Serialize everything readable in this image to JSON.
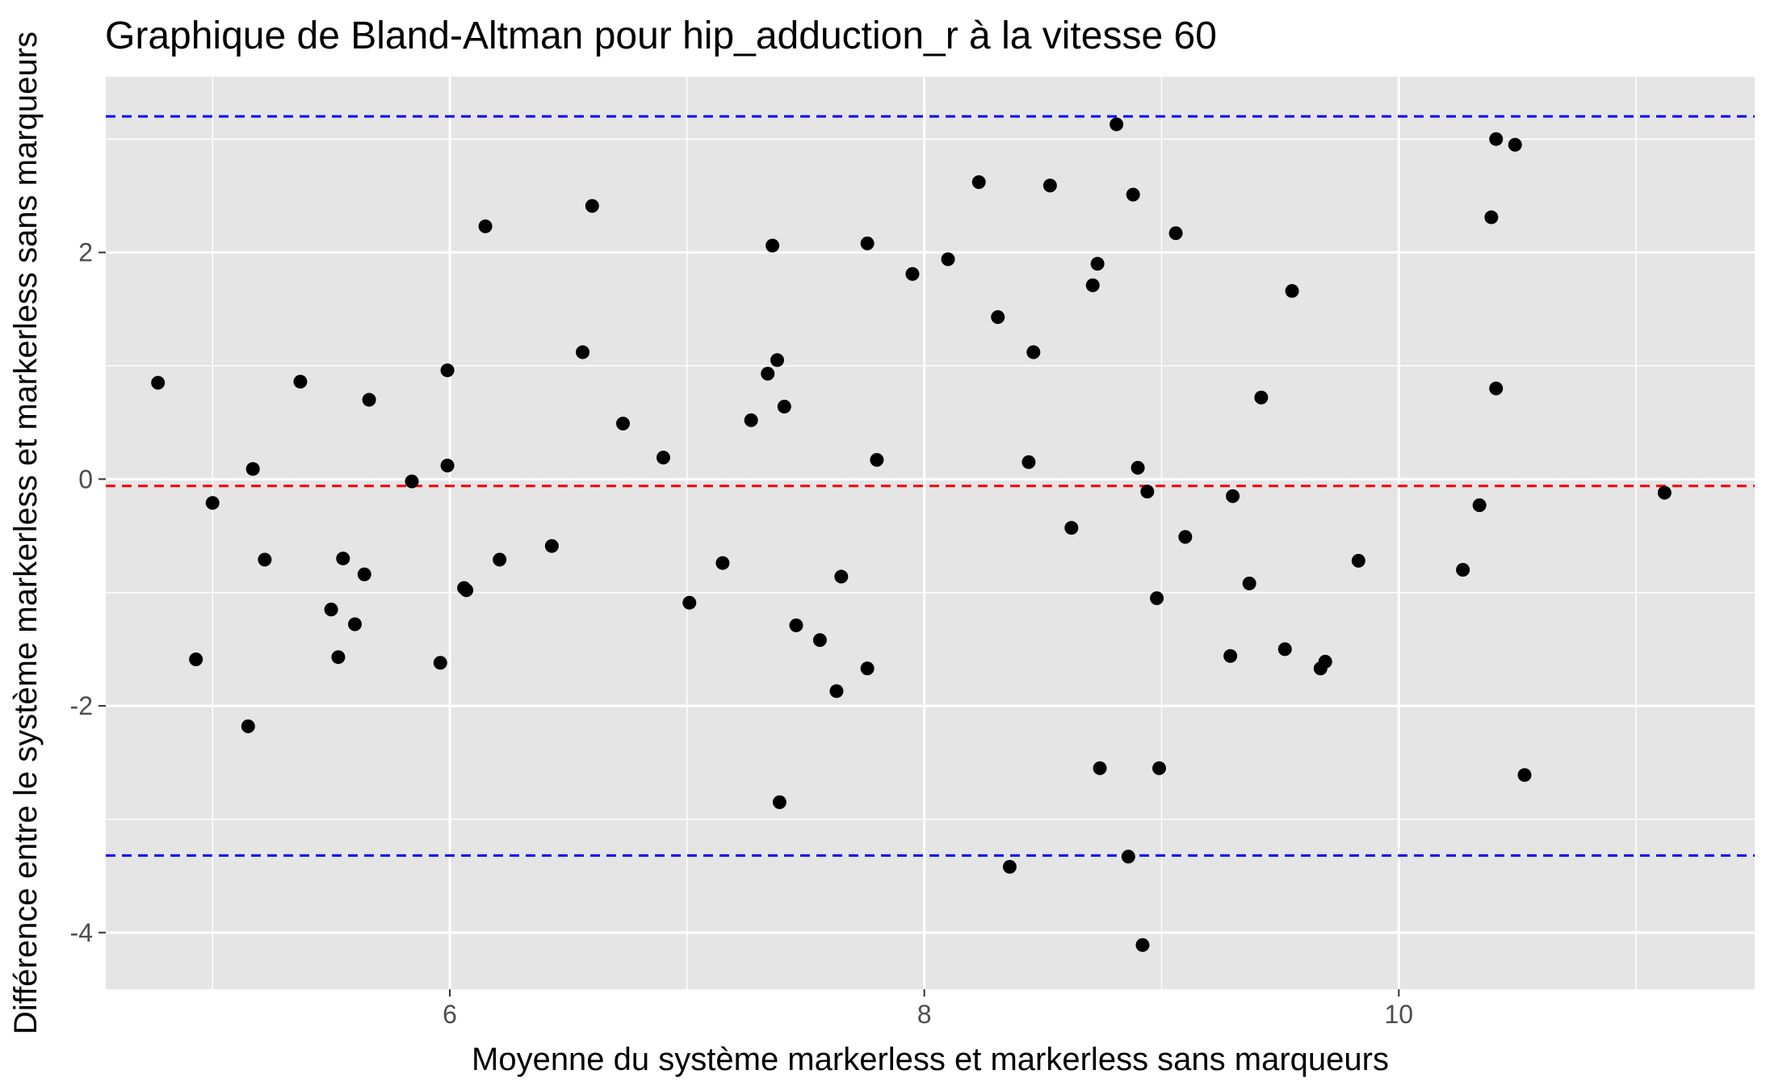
{
  "chart_data": {
    "type": "scatter",
    "title": "Graphique de Bland-Altman pour hip_adduction_r à la vitesse 60",
    "xlabel": "Moyenne du système markerless et markerless sans marqueurs",
    "ylabel": "Différence entre le système markerless et markerless sans marqueurs",
    "xlim": [
      4.55,
      11.5
    ],
    "ylim": [
      -4.5,
      3.55
    ],
    "x_ticks": [
      6,
      8,
      10
    ],
    "y_ticks": [
      -4,
      -2,
      0,
      2
    ],
    "x_tick_labels": [
      "6",
      "8",
      "10"
    ],
    "y_tick_labels": [
      "-4",
      "-2",
      "0",
      "2"
    ],
    "grid": true,
    "background": "#e5e5e5",
    "reference_lines": [
      {
        "role": "mean",
        "y": -0.06,
        "color": "#ff0000",
        "style": "dashed"
      },
      {
        "role": "upper_limit",
        "y": 3.2,
        "color": "#0000ff",
        "style": "dashed"
      },
      {
        "role": "lower_limit",
        "y": -3.32,
        "color": "#0000ff",
        "style": "dashed"
      }
    ],
    "point_color": "#000000",
    "points": [
      {
        "x": 4.77,
        "y": 0.85
      },
      {
        "x": 4.93,
        "y": -1.59
      },
      {
        "x": 5.0,
        "y": -0.21
      },
      {
        "x": 5.15,
        "y": -2.18
      },
      {
        "x": 5.17,
        "y": 0.09
      },
      {
        "x": 5.22,
        "y": -0.71
      },
      {
        "x": 5.37,
        "y": 0.86
      },
      {
        "x": 5.5,
        "y": -1.15
      },
      {
        "x": 5.53,
        "y": -1.57
      },
      {
        "x": 5.55,
        "y": -0.7
      },
      {
        "x": 5.6,
        "y": -1.28
      },
      {
        "x": 5.64,
        "y": -0.84
      },
      {
        "x": 5.66,
        "y": 0.7
      },
      {
        "x": 5.84,
        "y": -0.02
      },
      {
        "x": 5.96,
        "y": -1.62
      },
      {
        "x": 5.99,
        "y": 0.96
      },
      {
        "x": 5.99,
        "y": 0.12
      },
      {
        "x": 6.06,
        "y": -0.96
      },
      {
        "x": 6.07,
        "y": -0.98
      },
      {
        "x": 6.15,
        "y": 2.23
      },
      {
        "x": 6.21,
        "y": -0.71
      },
      {
        "x": 6.43,
        "y": -0.59
      },
      {
        "x": 6.56,
        "y": 1.12
      },
      {
        "x": 6.6,
        "y": 2.41
      },
      {
        "x": 6.73,
        "y": 0.49
      },
      {
        "x": 6.9,
        "y": 0.19
      },
      {
        "x": 7.01,
        "y": -1.09
      },
      {
        "x": 7.15,
        "y": -0.74
      },
      {
        "x": 7.27,
        "y": 0.52
      },
      {
        "x": 7.34,
        "y": 0.93
      },
      {
        "x": 7.36,
        "y": 2.06
      },
      {
        "x": 7.38,
        "y": 1.05
      },
      {
        "x": 7.39,
        "y": -2.85
      },
      {
        "x": 7.41,
        "y": 0.64
      },
      {
        "x": 7.46,
        "y": -1.29
      },
      {
        "x": 7.56,
        "y": -1.42
      },
      {
        "x": 7.63,
        "y": -1.87
      },
      {
        "x": 7.65,
        "y": -0.86
      },
      {
        "x": 7.76,
        "y": 2.08
      },
      {
        "x": 7.76,
        "y": -1.67
      },
      {
        "x": 7.8,
        "y": 0.17
      },
      {
        "x": 7.95,
        "y": 1.81
      },
      {
        "x": 8.1,
        "y": 1.94
      },
      {
        "x": 8.23,
        "y": 2.62
      },
      {
        "x": 8.31,
        "y": 1.43
      },
      {
        "x": 8.36,
        "y": -3.42
      },
      {
        "x": 8.44,
        "y": 0.15
      },
      {
        "x": 8.46,
        "y": 1.12
      },
      {
        "x": 8.53,
        "y": 2.59
      },
      {
        "x": 8.62,
        "y": -0.43
      },
      {
        "x": 8.71,
        "y": 1.71
      },
      {
        "x": 8.73,
        "y": 1.9
      },
      {
        "x": 8.74,
        "y": -2.55
      },
      {
        "x": 8.81,
        "y": 3.13
      },
      {
        "x": 8.86,
        "y": -3.33
      },
      {
        "x": 8.88,
        "y": 2.51
      },
      {
        "x": 8.9,
        "y": 0.1
      },
      {
        "x": 8.92,
        "y": -4.11
      },
      {
        "x": 8.94,
        "y": -0.11
      },
      {
        "x": 8.98,
        "y": -1.05
      },
      {
        "x": 8.99,
        "y": -2.55
      },
      {
        "x": 9.06,
        "y": 2.17
      },
      {
        "x": 9.1,
        "y": -0.51
      },
      {
        "x": 9.29,
        "y": -1.56
      },
      {
        "x": 9.3,
        "y": -0.15
      },
      {
        "x": 9.37,
        "y": -0.92
      },
      {
        "x": 9.42,
        "y": 0.72
      },
      {
        "x": 9.52,
        "y": -1.5
      },
      {
        "x": 9.55,
        "y": 1.66
      },
      {
        "x": 9.67,
        "y": -1.67
      },
      {
        "x": 9.69,
        "y": -1.61
      },
      {
        "x": 9.83,
        "y": -0.72
      },
      {
        "x": 10.27,
        "y": -0.8
      },
      {
        "x": 10.34,
        "y": -0.23
      },
      {
        "x": 10.39,
        "y": 2.31
      },
      {
        "x": 10.41,
        "y": 0.8
      },
      {
        "x": 10.41,
        "y": 3.0
      },
      {
        "x": 10.49,
        "y": 2.95
      },
      {
        "x": 10.53,
        "y": -2.61
      },
      {
        "x": 11.12,
        "y": -0.12
      }
    ]
  }
}
